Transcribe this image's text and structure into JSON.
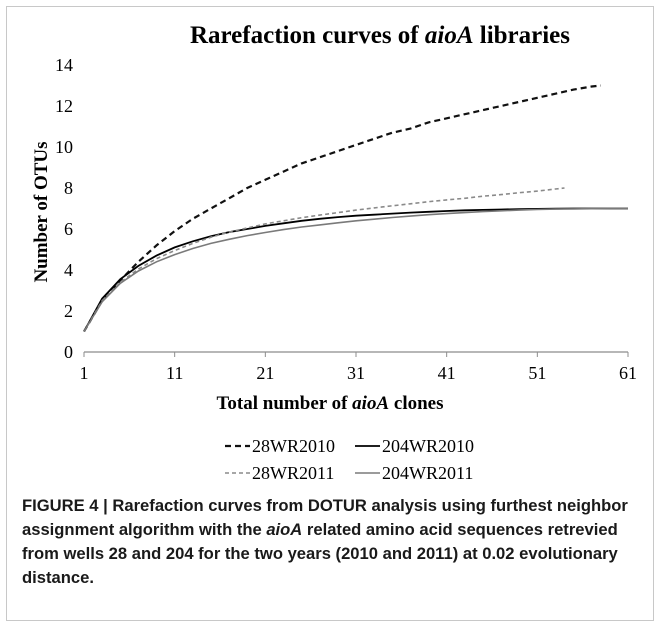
{
  "chart_data": {
    "type": "line",
    "title_prefix": "Rarefaction curves of ",
    "title_italic": "aioA",
    "title_suffix": " libraries",
    "xlabel_prefix": "Total number of ",
    "xlabel_italic": "aioA",
    "xlabel_suffix": " clones",
    "ylabel": "Number of OTUs",
    "xlim": [
      1,
      61
    ],
    "ylim": [
      0,
      14
    ],
    "xticks": [
      "1",
      "11",
      "21",
      "31",
      "41",
      "51",
      "61"
    ],
    "yticks": [
      "0",
      "2",
      "4",
      "6",
      "8",
      "10",
      "12",
      "14"
    ],
    "grid": false,
    "legend_position": "bottom",
    "series": [
      {
        "name": "28WR2010",
        "color": "#111111",
        "dash": "6,4",
        "width": 2.2,
        "x": [
          1,
          3,
          5,
          7,
          9,
          11,
          13,
          15,
          17,
          19,
          21,
          23,
          25,
          27,
          29,
          31,
          33,
          35,
          37,
          39,
          41,
          43,
          45,
          47,
          49,
          51,
          53,
          55,
          57,
          58
        ],
        "y": [
          1,
          2.5,
          3.5,
          4.4,
          5.2,
          5.9,
          6.5,
          7.0,
          7.5,
          8.0,
          8.4,
          8.8,
          9.2,
          9.5,
          9.8,
          10.1,
          10.4,
          10.7,
          10.9,
          11.2,
          11.4,
          11.6,
          11.8,
          12.0,
          12.2,
          12.4,
          12.6,
          12.8,
          12.95,
          13.0
        ]
      },
      {
        "name": "204WR2010",
        "color": "#000000",
        "dash": "",
        "width": 1.8,
        "x": [
          1,
          3,
          5,
          7,
          9,
          11,
          13,
          15,
          17,
          19,
          21,
          23,
          25,
          27,
          29,
          31,
          33,
          35,
          37,
          39,
          41,
          43,
          45,
          47,
          49,
          51,
          53,
          55,
          57,
          59,
          61
        ],
        "y": [
          1,
          2.6,
          3.55,
          4.2,
          4.7,
          5.1,
          5.4,
          5.65,
          5.85,
          6.0,
          6.15,
          6.28,
          6.4,
          6.5,
          6.58,
          6.65,
          6.7,
          6.75,
          6.8,
          6.84,
          6.88,
          6.91,
          6.93,
          6.95,
          6.97,
          6.98,
          6.99,
          7.0,
          7.0,
          7.0,
          7.0
        ]
      },
      {
        "name": "28WR2011",
        "color": "#8a8a8a",
        "dash": "4,3",
        "width": 1.6,
        "x": [
          1,
          3,
          5,
          7,
          9,
          11,
          13,
          15,
          17,
          19,
          21,
          23,
          25,
          27,
          29,
          31,
          33,
          35,
          37,
          39,
          41,
          43,
          45,
          47,
          49,
          51,
          53,
          54
        ],
        "y": [
          1,
          2.5,
          3.4,
          4.05,
          4.55,
          4.95,
          5.3,
          5.6,
          5.85,
          6.05,
          6.25,
          6.4,
          6.55,
          6.68,
          6.8,
          6.92,
          7.03,
          7.13,
          7.23,
          7.33,
          7.42,
          7.5,
          7.6,
          7.68,
          7.77,
          7.85,
          7.95,
          8.0
        ]
      },
      {
        "name": "204WR2011",
        "color": "#7a7a7a",
        "dash": "",
        "width": 1.6,
        "x": [
          1,
          3,
          5,
          7,
          9,
          11,
          13,
          15,
          17,
          19,
          21,
          23,
          25,
          27,
          29,
          31,
          33,
          35,
          37,
          39,
          41,
          43,
          45,
          47,
          49,
          51,
          53,
          55,
          57,
          59,
          61
        ],
        "y": [
          1,
          2.45,
          3.35,
          3.95,
          4.4,
          4.75,
          5.05,
          5.3,
          5.5,
          5.68,
          5.83,
          5.97,
          6.1,
          6.2,
          6.3,
          6.4,
          6.48,
          6.56,
          6.63,
          6.7,
          6.75,
          6.8,
          6.85,
          6.89,
          6.92,
          6.95,
          6.97,
          6.98,
          6.99,
          7.0,
          7.0
        ]
      }
    ]
  },
  "caption": {
    "lead": "FIGURE 4 | Rarefaction curves from DOTUR analysis using furthest neighbor assignment algorithm with the ",
    "italic": "aioA",
    "rest": " related amino acid sequences retrevied from wells 28 and 204 for the two years (2010 and 2011) at 0.02 evolutionary distance."
  }
}
